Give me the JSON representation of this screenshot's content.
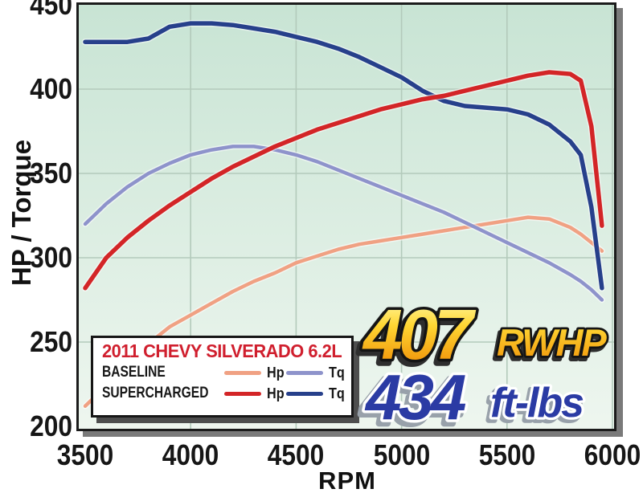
{
  "chart_data": {
    "type": "line",
    "title": "",
    "xlabel": "RPM",
    "ylabel": "HP / Torque",
    "xlim": [
      3500,
      6000
    ],
    "ylim": [
      200,
      450
    ],
    "x_ticks": [
      3500,
      4000,
      4500,
      5000,
      5500,
      6000
    ],
    "y_ticks": [
      200,
      250,
      300,
      350,
      400,
      450
    ],
    "grid": true,
    "x": [
      3500,
      3600,
      3700,
      3800,
      3900,
      4000,
      4100,
      4200,
      4300,
      4400,
      4500,
      4600,
      4700,
      4800,
      4900,
      5000,
      5100,
      5200,
      5300,
      5400,
      5500,
      5600,
      5700,
      5800,
      5850,
      5900,
      5950
    ],
    "series": [
      {
        "name": "baseline_hp",
        "group": "BASELINE",
        "label": "Hp",
        "color": "#f0a183",
        "width": 4.5,
        "values": [
          212,
          224,
          237,
          249,
          259,
          266,
          273,
          280,
          286,
          291,
          297,
          301,
          305,
          308,
          310,
          312,
          314,
          316,
          318,
          320,
          322,
          324,
          323,
          318,
          314,
          309,
          304
        ]
      },
      {
        "name": "baseline_tq",
        "group": "BASELINE",
        "label": "Tq",
        "color": "#8e93cb",
        "width": 4.5,
        "values": [
          320,
          332,
          342,
          350,
          356,
          361,
          364,
          366,
          366,
          364,
          361,
          357,
          352,
          347,
          342,
          337,
          332,
          327,
          321,
          315,
          309,
          303,
          297,
          290,
          286,
          281,
          275
        ]
      },
      {
        "name": "supercharged_tq",
        "group": "SUPERCHARGED",
        "label": "Tq",
        "color": "#27408b",
        "width": 5.5,
        "values": [
          428,
          428,
          428,
          430,
          437,
          439,
          439,
          438,
          436,
          434,
          431,
          428,
          424,
          419,
          413,
          407,
          399,
          393,
          390,
          389,
          388,
          385,
          379,
          369,
          361,
          330,
          282
        ]
      },
      {
        "name": "supercharged_hp",
        "group": "SUPERCHARGED",
        "label": "Hp",
        "color": "#d32527",
        "width": 5.5,
        "values": [
          282,
          300,
          312,
          322,
          331,
          339,
          347,
          354,
          360,
          366,
          371,
          376,
          380,
          384,
          388,
          391,
          394,
          396,
          399,
          402,
          405,
          408,
          410,
          409,
          405,
          378,
          319
        ]
      }
    ],
    "legend": {
      "title": "2011 CHEVY SILVERADO 6.2L",
      "rows": [
        {
          "label": "BASELINE",
          "entries": [
            {
              "label": "Hp",
              "series": "baseline_hp"
            },
            {
              "label": "Tq",
              "series": "baseline_tq"
            }
          ]
        },
        {
          "label": "SUPERCHARGED",
          "entries": [
            {
              "label": "Hp",
              "series": "supercharged_hp"
            },
            {
              "label": "Tq",
              "series": "supercharged_tq"
            }
          ]
        }
      ]
    },
    "annotations": [
      {
        "value": "407",
        "unit": "RWHP",
        "refers_to": "supercharged_hp_peak",
        "text_style": "gold"
      },
      {
        "value": "434",
        "unit": "ft-lbs",
        "refers_to": "supercharged_tq_peak",
        "text_style": "blue"
      }
    ]
  },
  "colors": {
    "plot_bg_top": "#c8e4d4",
    "plot_bg_bottom": "#eef6ef",
    "grid": "#b3cabb",
    "frame": "#1b1b1b",
    "plot_shadow": "#7a7a7a",
    "legend_shadow": "#4e4e4e",
    "legend_title": "#d01f2e",
    "axis_text": "#161616",
    "gold_top": "#fff9a8",
    "gold_mid": "#ffd733",
    "gold_bottom": "#f29c0f",
    "gold_outline": "#141414",
    "blue_value": "#2b3ba4",
    "blue_outline": "#ffffff",
    "blue_shadow": "#98a1aa"
  }
}
